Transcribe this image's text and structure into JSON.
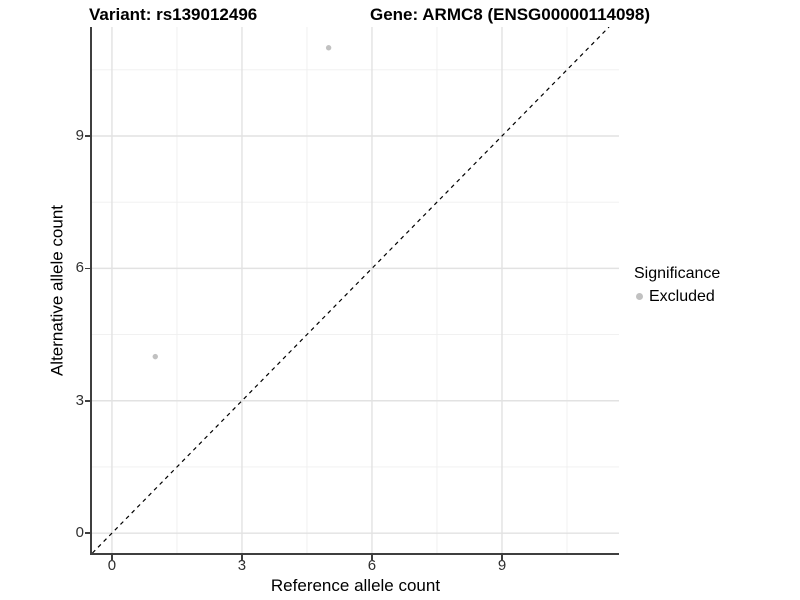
{
  "titles": {
    "left": "Variant: rs139012496",
    "right": "Gene: ARMC8 (ENSG00000114098)"
  },
  "chart_data": {
    "type": "scatter",
    "xlabel": "Reference allele count",
    "ylabel": "Alternative allele count",
    "xlim": [
      -0.46,
      11.7
    ],
    "ylim": [
      -0.45,
      11.47
    ],
    "x_major_ticks": [
      0,
      3,
      6,
      9
    ],
    "y_major_ticks": [
      0,
      3,
      6,
      9
    ],
    "x_minor_ticks": [
      1.5,
      4.5,
      7.5,
      10.5
    ],
    "y_minor_ticks": [
      1.5,
      4.5,
      7.5,
      10.5
    ],
    "grid": true,
    "identity_line": {
      "slope": 1,
      "intercept": 0,
      "style": "dashed",
      "color": "#000000"
    },
    "series": [
      {
        "name": "Excluded",
        "color": "#c1c1c1",
        "marker": "circle",
        "points": [
          [
            1,
            4
          ],
          [
            5,
            11
          ]
        ]
      }
    ],
    "legend": {
      "title": "Significance",
      "position": "right",
      "items": [
        {
          "label": "Excluded",
          "color": "#c1c1c1"
        }
      ]
    }
  },
  "colors": {
    "background": "#ffffff",
    "grid_major": "#e2e2e2",
    "grid_minor": "#efefef",
    "axis_line": "#3f3f3f",
    "tick_text": "#303030",
    "point": "#c1c1c1"
  }
}
